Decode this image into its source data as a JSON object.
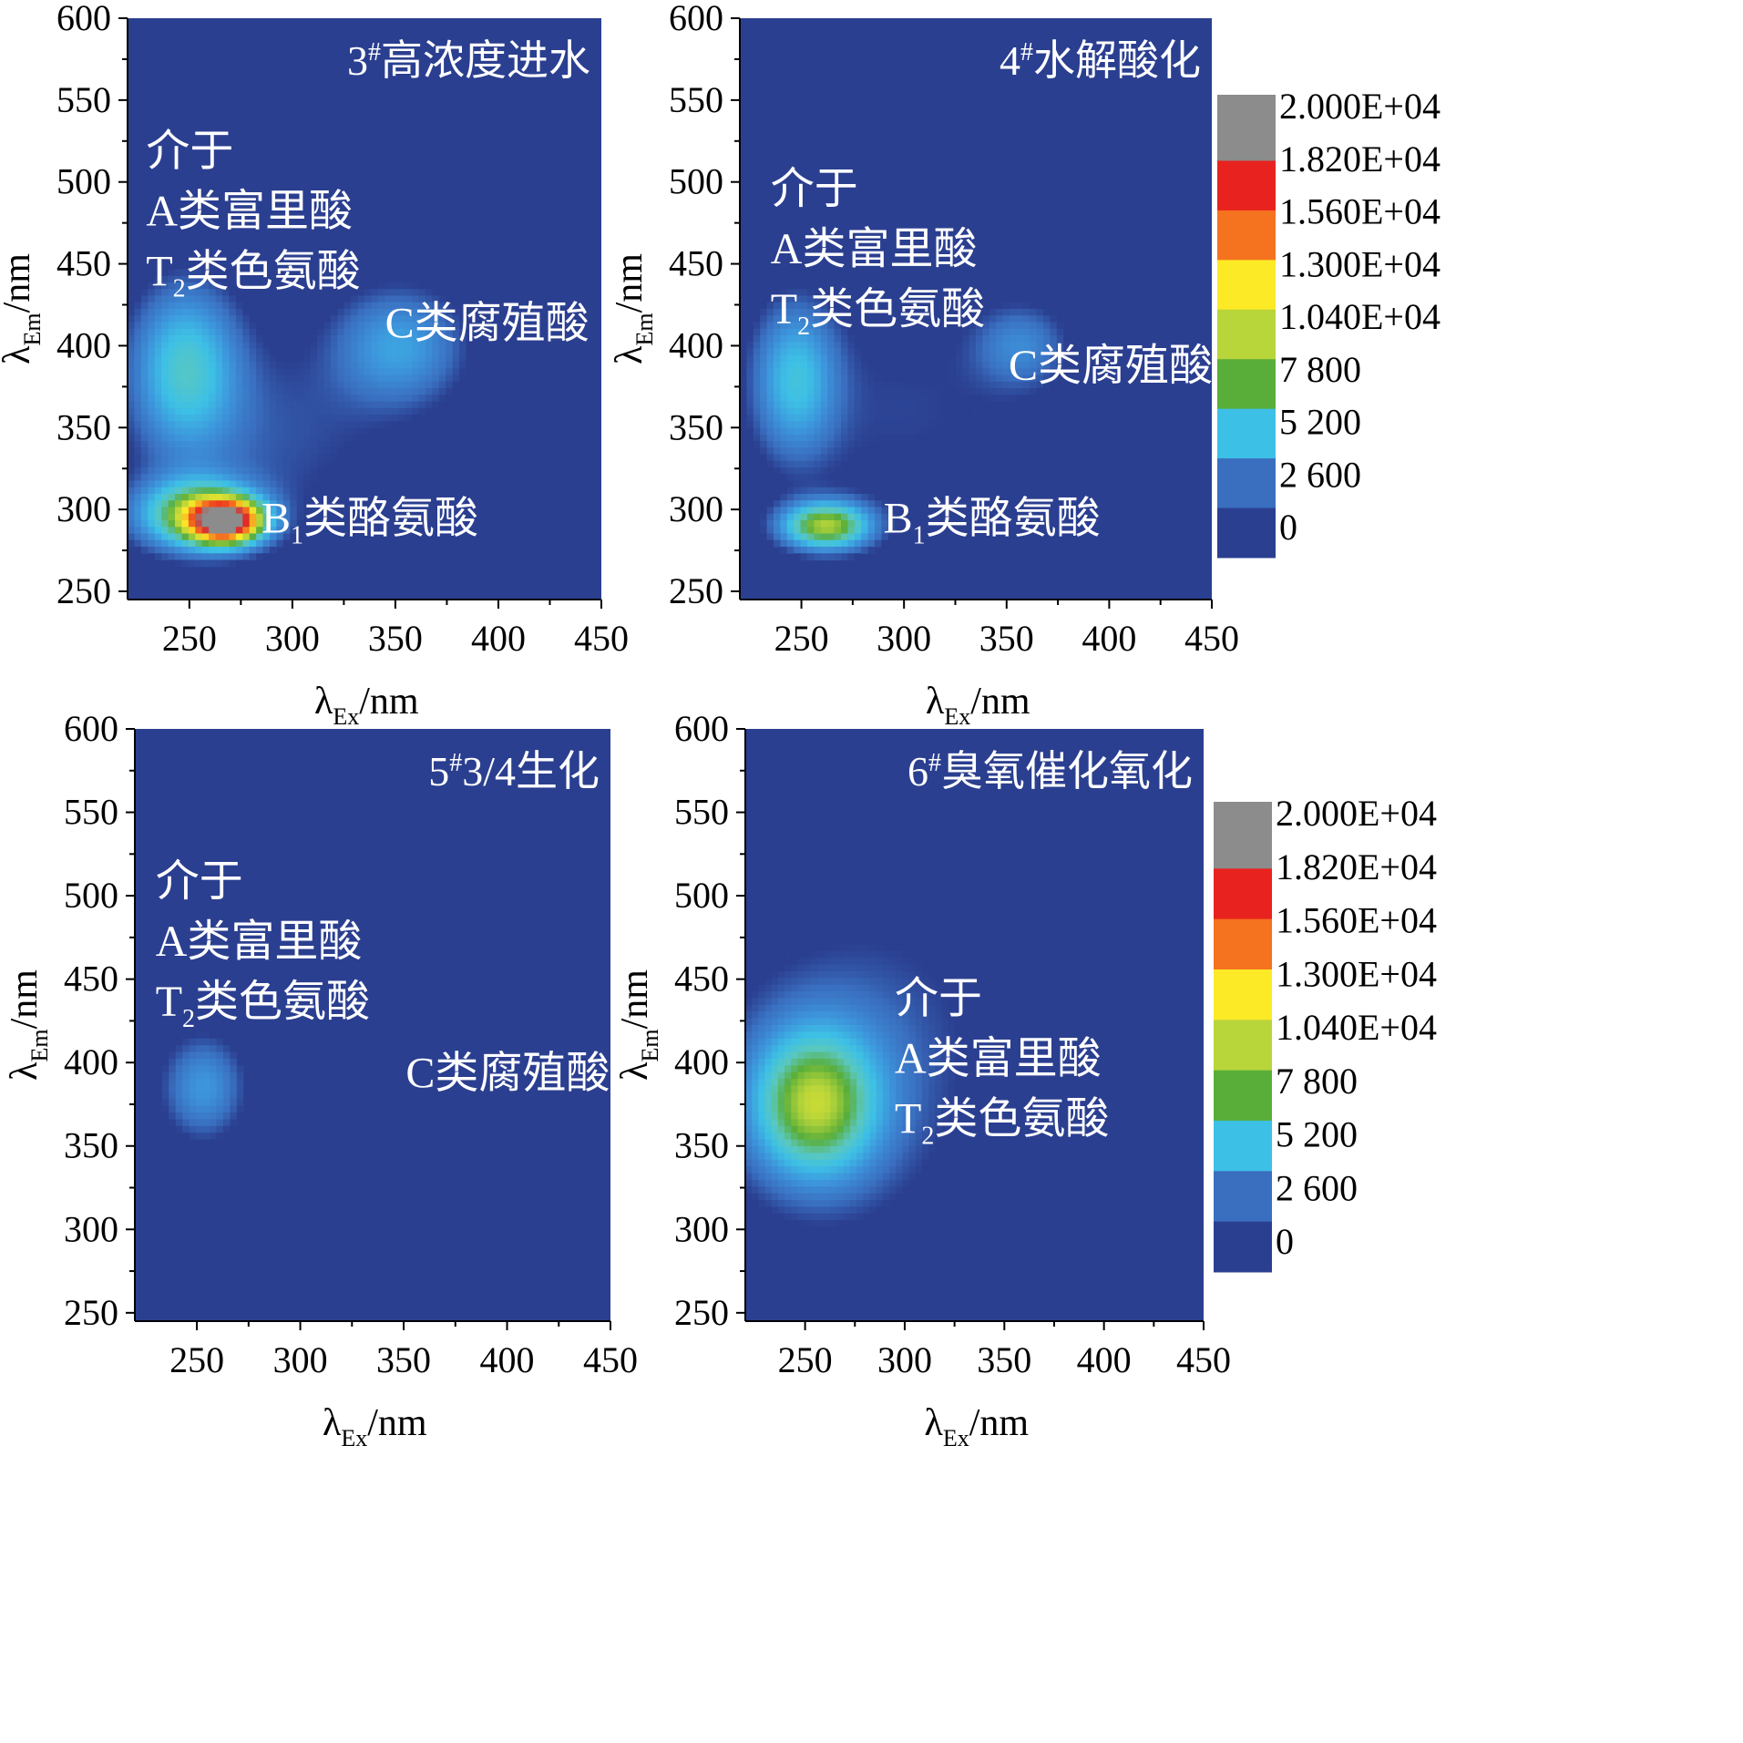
{
  "colorbar": {
    "labels": [
      "2.000E+04",
      "1.820E+04",
      "1.560E+04",
      "1.300E+04",
      "1.040E+04",
      "7 800",
      "5 200",
      "2 600",
      "0"
    ],
    "colors": [
      "#8c8c8c",
      "#e8221e",
      "#f5721f",
      "#fcea26",
      "#b8d53a",
      "#59ae3a",
      "#3dc0e6",
      "#3a6fc0",
      "#2b3f90"
    ],
    "range": [
      0,
      20000
    ]
  },
  "chart_data": [
    {
      "type": "heatmap",
      "title": "3",
      "title_sup": "#",
      "title_rest": "高浓度进水",
      "xlabel": "λ",
      "xlabel_sub": "Ex",
      "xlabel_unit": "/nm",
      "ylabel": "λ",
      "ylabel_sub": "Em",
      "ylabel_unit": "/nm",
      "xlim": [
        220,
        450
      ],
      "ylim": [
        245,
        600
      ],
      "xticks": [
        250,
        300,
        350,
        400,
        450
      ],
      "yticks": [
        250,
        300,
        350,
        400,
        450,
        500,
        550,
        600
      ],
      "peaks": [
        {
          "ex": 268,
          "em": 293,
          "intensity": 18500,
          "sx": 12,
          "sy": 9
        },
        {
          "ex": 253,
          "em": 297,
          "intensity": 9000,
          "sx": 20,
          "sy": 15
        },
        {
          "ex": 248,
          "em": 387,
          "intensity": 6000,
          "sx": 18,
          "sy": 35
        },
        {
          "ex": 352,
          "em": 400,
          "intensity": 4200,
          "sx": 22,
          "sy": 25
        },
        {
          "ex": 290,
          "em": 345,
          "intensity": 1800,
          "sx": 45,
          "sy": 45
        }
      ],
      "annotations": [
        {
          "lines": [
            "介于",
            "A类富里酸"
          ],
          "t2": "类色氨酸",
          "ex": 229,
          "em": 510
        },
        {
          "text": "C类腐殖酸",
          "ex": 345,
          "em": 405
        },
        {
          "b1": "类酪氨酸",
          "ex": 285,
          "em": 286
        }
      ]
    },
    {
      "type": "heatmap",
      "title": "4",
      "title_sup": "#",
      "title_rest": "水解酸化",
      "xlabel": "λ",
      "xlabel_sub": "Ex",
      "xlabel_unit": "/nm",
      "ylabel": "λ",
      "ylabel_sub": "Em",
      "ylabel_unit": "/nm",
      "xlim": [
        220,
        450
      ],
      "ylim": [
        245,
        600
      ],
      "xticks": [
        250,
        300,
        350,
        400,
        450
      ],
      "yticks": [
        250,
        300,
        350,
        400,
        450,
        500,
        550,
        600
      ],
      "peaks": [
        {
          "ex": 262,
          "em": 290,
          "intensity": 10400,
          "sx": 15,
          "sy": 10
        },
        {
          "ex": 247,
          "em": 380,
          "intensity": 5200,
          "sx": 14,
          "sy": 32
        },
        {
          "ex": 357,
          "em": 400,
          "intensity": 3000,
          "sx": 16,
          "sy": 18
        },
        {
          "ex": 300,
          "em": 360,
          "intensity": 1500,
          "sx": 50,
          "sy": 50
        }
      ],
      "annotations": [
        {
          "lines": [
            "介于",
            "A类富里酸"
          ],
          "t2": "类色氨酸",
          "ex": 235,
          "em": 487
        },
        {
          "text": "C类腐殖酸",
          "ex": 351,
          "em": 379
        },
        {
          "b1": "类酪氨酸",
          "ex": 290,
          "em": 286
        }
      ]
    },
    {
      "type": "heatmap",
      "title": "5",
      "title_sup": "#",
      "title_rest": "3/4生化",
      "xlabel": "λ",
      "xlabel_sub": "Ex",
      "xlabel_unit": "/nm",
      "ylabel": "λ",
      "ylabel_sub": "Em",
      "ylabel_unit": "/nm",
      "xlim": [
        220,
        450
      ],
      "ylim": [
        245,
        600
      ],
      "xticks": [
        250,
        300,
        350,
        400,
        450
      ],
      "yticks": [
        250,
        300,
        350,
        400,
        450,
        500,
        550,
        600
      ],
      "peaks": [
        {
          "ex": 253,
          "em": 385,
          "intensity": 4000,
          "sx": 14,
          "sy": 22
        },
        {
          "ex": 350,
          "em": 400,
          "intensity": 1400,
          "sx": 30,
          "sy": 25
        }
      ],
      "annotations": [
        {
          "lines": [
            "介于",
            "A类富里酸"
          ],
          "t2": "类色氨酸",
          "ex": 230,
          "em": 500
        },
        {
          "text": "C类腐殖酸",
          "ex": 351,
          "em": 385
        }
      ]
    },
    {
      "type": "heatmap",
      "title": "6",
      "title_sup": "#",
      "title_rest": "臭氧催化氧化",
      "xlabel": "λ",
      "xlabel_sub": "Ex",
      "xlabel_unit": "/nm",
      "ylabel": "λ",
      "ylabel_sub": "Em",
      "ylabel_unit": "/nm",
      "xlim": [
        220,
        450
      ],
      "ylim": [
        245,
        600
      ],
      "xticks": [
        250,
        300,
        350,
        400,
        450
      ],
      "yticks": [
        250,
        300,
        350,
        400,
        450,
        500,
        550,
        600
      ],
      "peaks": [
        {
          "ex": 255,
          "em": 375,
          "intensity": 8000,
          "sx": 20,
          "sy": 28
        },
        {
          "ex": 255,
          "em": 380,
          "intensity": 2800,
          "sx": 35,
          "sy": 50
        },
        {
          "ex": 300,
          "em": 420,
          "intensity": 1300,
          "sx": 50,
          "sy": 80
        }
      ],
      "annotations": [
        {
          "lines": [
            "介于",
            "A类富里酸"
          ],
          "t2": "类色氨酸",
          "ex": 295,
          "em": 430
        }
      ]
    }
  ]
}
